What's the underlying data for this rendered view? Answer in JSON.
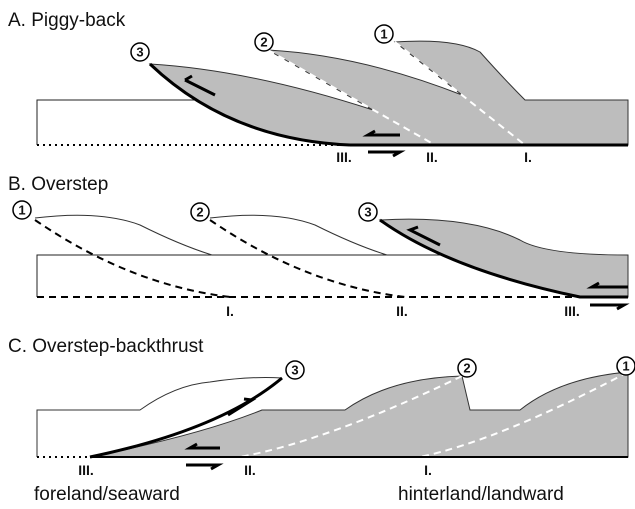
{
  "panels": [
    {
      "title": "A. Piggy-back",
      "sheets": [
        "3",
        "2",
        "1"
      ],
      "faults": [
        "III.",
        "II.",
        "I."
      ]
    },
    {
      "title": "B. Overstep",
      "sheets": [
        "1",
        "2",
        "3"
      ],
      "faults": [
        "I.",
        "II.",
        "III."
      ]
    },
    {
      "title": "C. Overstep-backthrust",
      "sheets": [
        "3",
        "2",
        "1"
      ],
      "faults": [
        "III.",
        "II.",
        "I."
      ]
    }
  ],
  "footer": {
    "left": "foreland/seaward",
    "right": "hinterland/landward"
  }
}
